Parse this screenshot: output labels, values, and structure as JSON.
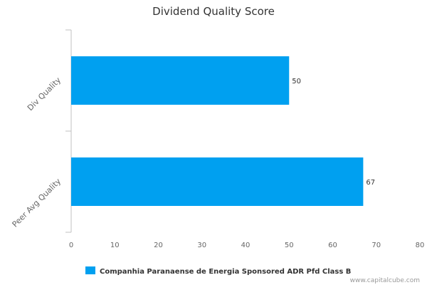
{
  "chart_data": {
    "type": "bar",
    "orientation": "horizontal",
    "title": "Dividend Quality Score",
    "categories": [
      "Div Quality",
      "Peer Avg Quality"
    ],
    "series": [
      {
        "name": "Companhia Paranaense de Energia Sponsored ADR Pfd Class B",
        "values": [
          50,
          67
        ]
      }
    ],
    "xlim": [
      0,
      80
    ],
    "xticks": [
      0,
      10,
      20,
      30,
      40,
      50,
      60,
      70,
      80
    ],
    "grid": false,
    "legend": "bottom",
    "bar_color": "#00a0f0"
  },
  "watermark": "www.capitalcube.com"
}
